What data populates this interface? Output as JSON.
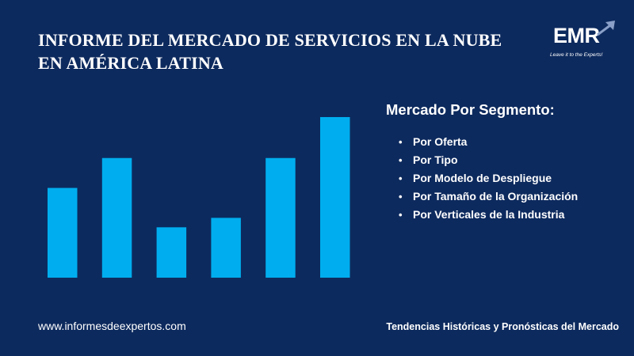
{
  "title": {
    "line1": "INFORME DEL MERCADO DE SERVICIOS EN LA NUBE",
    "line2": "EN AMÉRICA LATINA"
  },
  "logo": {
    "text": "EMR",
    "tagline": "Leave it to the Experts!",
    "arrow_icon": "up-right-arrow-icon"
  },
  "segments": {
    "heading": "Mercado Por Segmento:",
    "items": [
      "Por Oferta",
      "Por Tipo",
      "Por Modelo de Despliegue",
      "Por Tamaño de la Organización",
      "Por Verticales de la Industria"
    ]
  },
  "footer": {
    "website": "www.informesdeexpertos.com",
    "tagline": "Tendencias Históricas y Pronósticas del Mercado"
  },
  "colors": {
    "background": "#0d2a5e",
    "bar": "#00aeef"
  },
  "chart_data": {
    "type": "bar",
    "values": [
      57,
      76,
      32,
      38,
      76,
      102
    ],
    "ylim": [
      0,
      102
    ]
  }
}
